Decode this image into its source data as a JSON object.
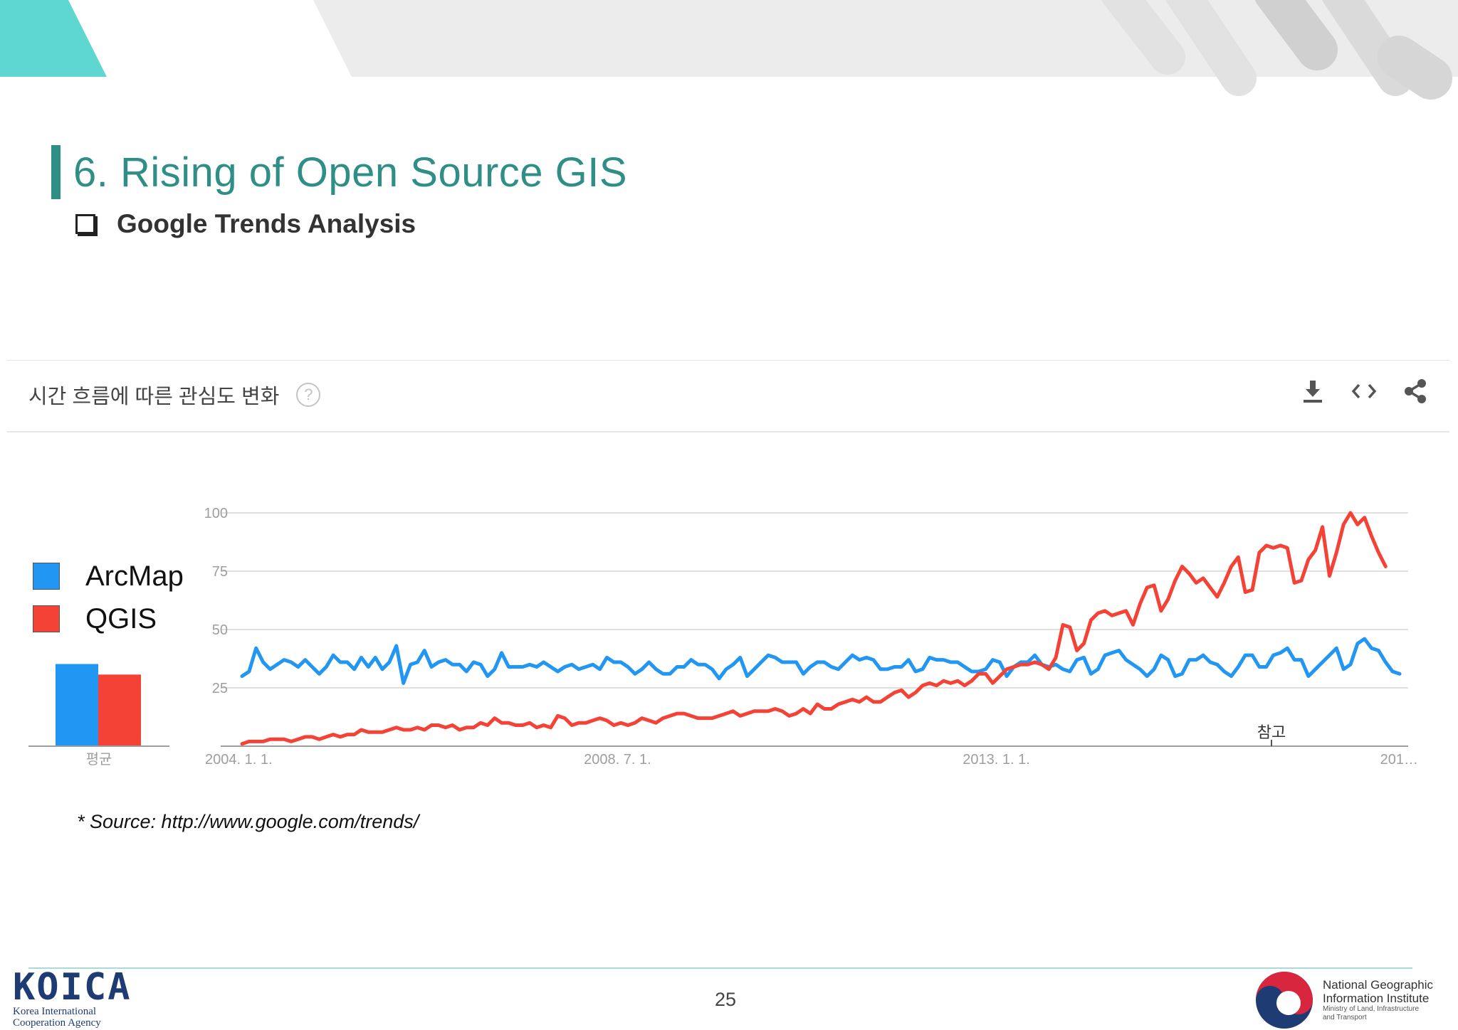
{
  "slide": {
    "title": "6. Rising of Open Source GIS",
    "subtitle": "Google Trends Analysis",
    "source": "* Source: http://www.google.com/trends/",
    "page_number": "25",
    "accent_color": "#2f8f86"
  },
  "panel": {
    "title": "시간 흐름에 따른 관심도 변화",
    "help_icon": "?",
    "tools": [
      "download-icon",
      "embed-icon",
      "share-icon"
    ]
  },
  "legend": [
    {
      "name": "ArcMap",
      "color": "#2196f3"
    },
    {
      "name": "QGIS",
      "color": "#f44336"
    }
  ],
  "average_label": "평균",
  "note_label": "참고",
  "chart_data": {
    "type": "line",
    "title": "",
    "xlabel": "",
    "ylabel": "",
    "ylim": [
      0,
      100
    ],
    "yticks": [
      "25",
      "50",
      "75",
      "100"
    ],
    "xtick_labels": [
      "2004. 1. 1.",
      "2008. 7. 1.",
      "2013. 1. 1.",
      "201…"
    ],
    "x_start": "2004-01",
    "x_step": "month",
    "grid": true,
    "series": [
      {
        "name": "ArcMap",
        "color": "#2196f3",
        "values": [
          30,
          32,
          42,
          36,
          33,
          35,
          37,
          36,
          34,
          37,
          34,
          31,
          34,
          39,
          36,
          36,
          33,
          38,
          34,
          38,
          33,
          36,
          43,
          27,
          35,
          36,
          41,
          34,
          36,
          37,
          35,
          35,
          32,
          36,
          35,
          30,
          33,
          40,
          34,
          34,
          34,
          35,
          34,
          36,
          34,
          32,
          34,
          35,
          33,
          34,
          35,
          33,
          38,
          36,
          36,
          34,
          31,
          33,
          36,
          33,
          31,
          31,
          34,
          34,
          37,
          35,
          35,
          33,
          29,
          33,
          35,
          38,
          30,
          33,
          36,
          39,
          38,
          36,
          36,
          36,
          31,
          34,
          36,
          36,
          34,
          33,
          36,
          39,
          37,
          38,
          37,
          33,
          33,
          34,
          34,
          37,
          32,
          33,
          38,
          37,
          37,
          36,
          36,
          34,
          32,
          32,
          33,
          37,
          36,
          30,
          34,
          36,
          36,
          39,
          35,
          34,
          35,
          33,
          32,
          37,
          38,
          31,
          33,
          39,
          40,
          41,
          37,
          35,
          33,
          30,
          33,
          39,
          37,
          30,
          31,
          37,
          37,
          39,
          36,
          35,
          32,
          30,
          34,
          39,
          39,
          34,
          34,
          39,
          40,
          42,
          37,
          37,
          30,
          33,
          36,
          39,
          42,
          33,
          35,
          44,
          46,
          42,
          41,
          36,
          32,
          31
        ]
      },
      {
        "name": "QGIS",
        "color": "#f44336",
        "values": [
          1,
          2,
          2,
          2,
          3,
          3,
          3,
          2,
          3,
          4,
          4,
          3,
          4,
          5,
          4,
          5,
          5,
          7,
          6,
          6,
          6,
          7,
          8,
          7,
          7,
          8,
          7,
          9,
          9,
          8,
          9,
          7,
          8,
          8,
          10,
          9,
          12,
          10,
          10,
          9,
          9,
          10,
          8,
          9,
          8,
          13,
          12,
          9,
          10,
          10,
          11,
          12,
          11,
          9,
          10,
          9,
          10,
          12,
          11,
          10,
          12,
          13,
          14,
          14,
          13,
          12,
          12,
          12,
          13,
          14,
          15,
          13,
          14,
          15,
          15,
          15,
          16,
          15,
          13,
          14,
          16,
          14,
          18,
          16,
          16,
          18,
          19,
          20,
          19,
          21,
          19,
          19,
          21,
          23,
          24,
          21,
          23,
          26,
          27,
          26,
          28,
          27,
          28,
          26,
          28,
          31,
          31,
          27,
          30,
          33,
          34,
          35,
          35,
          36,
          35,
          33,
          38,
          52,
          51,
          41,
          44,
          54,
          57,
          58,
          56,
          57,
          58,
          52,
          61,
          68,
          69,
          58,
          63,
          71,
          77,
          74,
          70,
          72,
          68,
          64,
          70,
          77,
          81,
          66,
          67,
          83,
          86,
          85,
          86,
          85,
          70,
          71,
          80,
          84,
          94,
          73,
          83,
          95,
          100,
          95,
          98,
          90,
          83,
          77
        ]
      }
    ]
  }
}
